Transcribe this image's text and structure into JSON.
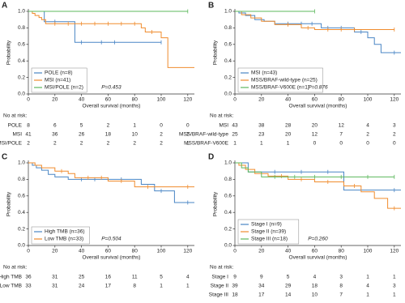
{
  "chart_data": [
    {
      "type": "km",
      "panel": "A",
      "xlabel": "Overall survival (months)",
      "ylabel": "Probability",
      "xlim": [
        0,
        125
      ],
      "xticks": [
        0,
        20,
        40,
        60,
        80,
        100,
        120
      ],
      "ylim": [
        0,
        1
      ],
      "yticks": [
        {
          "value": 0,
          "label": "0.0"
        },
        0.2,
        0.4,
        0.6,
        0.8,
        {
          "value": 1,
          "label": "1.0"
        }
      ],
      "annotation": "P=0.453",
      "series": [
        {
          "name": "POLE (n=8)",
          "color": "#4a86c5",
          "x": [
            0,
            12,
            35,
            100
          ],
          "values": [
            1,
            0.875,
            0.625,
            0.625
          ],
          "censored": {
            "x": [
              20,
              40,
              55,
              65,
              100
            ],
            "values": [
              0.875,
              0.625,
              0.625,
              0.625,
              0.625
            ]
          }
        },
        {
          "name": "MSI (n=41)",
          "color": "#f08c2e",
          "x": [
            0,
            3,
            5,
            8,
            10,
            13,
            85,
            88,
            100,
            105,
            125
          ],
          "values": [
            1,
            0.975,
            0.95,
            0.925,
            0.9,
            0.85,
            0.8,
            0.75,
            0.68,
            0.32,
            0.32
          ],
          "censored": {
            "x": [
              20,
              30,
              40,
              50,
              60,
              70,
              80,
              93
            ],
            "values": [
              0.85,
              0.85,
              0.85,
              0.85,
              0.85,
              0.85,
              0.85,
              0.75
            ]
          }
        },
        {
          "name": "MSI/POLE (n=2)",
          "color": "#5cb85c",
          "x": [
            0,
            120
          ],
          "values": [
            1,
            1
          ],
          "censored": {
            "x": [
              120
            ],
            "values": [
              1
            ]
          }
        }
      ],
      "risk_title": "No at risk:",
      "risk_table": [
        {
          "label": "POLE",
          "counts": [
            8,
            6,
            5,
            2,
            1,
            0,
            0
          ]
        },
        {
          "label": "MSI",
          "counts": [
            41,
            36,
            26,
            18,
            10,
            2,
            2
          ]
        },
        {
          "label": "MSI/POLE",
          "counts": [
            2,
            2,
            2,
            2,
            2,
            2,
            1
          ]
        }
      ]
    },
    {
      "type": "km",
      "panel": "B",
      "xlabel": "Overall survival (months)",
      "ylabel": "Probability",
      "xlim": [
        0,
        125
      ],
      "xticks": [
        0,
        20,
        40,
        60,
        80,
        100,
        120
      ],
      "ylim": [
        0,
        1
      ],
      "yticks": [
        {
          "value": 0,
          "label": "0.0"
        },
        0.2,
        0.4,
        0.6,
        0.8,
        {
          "value": 1,
          "label": "1.0"
        }
      ],
      "annotation": "P=0.876",
      "series": [
        {
          "name": "MSI (n=43)",
          "color": "#4a86c5",
          "x": [
            0,
            3,
            8,
            15,
            22,
            30,
            65,
            90,
            100,
            105,
            110,
            125
          ],
          "values": [
            1,
            0.98,
            0.95,
            0.9,
            0.88,
            0.85,
            0.8,
            0.75,
            0.68,
            0.6,
            0.5,
            0.5
          ],
          "censored": {
            "x": [
              40,
              50,
              58,
              70,
              80,
              95,
              120
            ],
            "values": [
              0.85,
              0.85,
              0.85,
              0.8,
              0.8,
              0.75,
              0.5
            ]
          }
        },
        {
          "name": "MSS/BRAF-wild-type (n=25)",
          "color": "#f08c2e",
          "x": [
            0,
            5,
            12,
            20,
            30,
            50,
            60,
            120
          ],
          "values": [
            1,
            0.96,
            0.92,
            0.88,
            0.84,
            0.8,
            0.78,
            0.78
          ],
          "censored": {
            "x": [
              40,
              55,
              70,
              80,
              90,
              120
            ],
            "values": [
              0.84,
              0.8,
              0.78,
              0.78,
              0.78,
              0.78
            ]
          }
        },
        {
          "name": "MSS/BRAF-V600E (n=1)",
          "color": "#5cb85c",
          "x": [
            0,
            60
          ],
          "values": [
            1,
            1
          ],
          "censored": {
            "x": [
              60
            ],
            "values": [
              1
            ]
          }
        }
      ],
      "risk_title": "No at risk:",
      "risk_table": [
        {
          "label": "MSI",
          "counts": [
            43,
            38,
            28,
            20,
            12,
            4,
            3
          ]
        },
        {
          "label": "MSS/BRAF-wild-type",
          "counts": [
            25,
            23,
            20,
            12,
            7,
            2,
            2
          ]
        },
        {
          "label": "MSS/BRAF-V600E",
          "counts": [
            1,
            1,
            1,
            0,
            0,
            0,
            0
          ]
        }
      ]
    },
    {
      "type": "km",
      "panel": "C",
      "xlabel": "Overall survival (months)",
      "ylabel": "Probability",
      "xlim": [
        0,
        125
      ],
      "xticks": [
        0,
        20,
        40,
        60,
        80,
        100,
        120
      ],
      "ylim": [
        0,
        1
      ],
      "yticks": [
        {
          "value": 0,
          "label": "0.0"
        },
        0.2,
        0.4,
        0.6,
        0.8,
        {
          "value": 1,
          "label": "1.0"
        }
      ],
      "annotation": "P=0.504",
      "series": [
        {
          "name": "High TMB (n=36)",
          "color": "#4a86c5",
          "x": [
            0,
            3,
            6,
            10,
            15,
            20,
            30,
            85,
            95,
            110,
            125
          ],
          "values": [
            1,
            0.97,
            0.94,
            0.91,
            0.86,
            0.83,
            0.8,
            0.74,
            0.66,
            0.52,
            0.52
          ],
          "censored": {
            "x": [
              40,
              50,
              60,
              70,
              100,
              120
            ],
            "values": [
              0.8,
              0.8,
              0.8,
              0.8,
              0.66,
              0.52
            ]
          }
        },
        {
          "name": "Low TMB (n=33)",
          "color": "#f08c2e",
          "x": [
            0,
            5,
            10,
            20,
            30,
            35,
            60,
            80,
            125
          ],
          "values": [
            1,
            0.97,
            0.94,
            0.9,
            0.87,
            0.82,
            0.78,
            0.71,
            0.71
          ],
          "censored": {
            "x": [
              25,
              45,
              55,
              70,
              90,
              120
            ],
            "values": [
              0.9,
              0.82,
              0.82,
              0.78,
              0.71,
              0.71
            ]
          }
        }
      ],
      "risk_title": "No at risk:",
      "risk_table": [
        {
          "label": "High TMB",
          "counts": [
            36,
            31,
            25,
            16,
            11,
            5,
            4
          ]
        },
        {
          "label": "Low TMB",
          "counts": [
            33,
            31,
            24,
            17,
            8,
            1,
            1
          ]
        }
      ]
    },
    {
      "type": "km",
      "panel": "D",
      "xlabel": "Overall survival (months)",
      "ylabel": "Probability",
      "xlim": [
        0,
        125
      ],
      "xticks": [
        0,
        20,
        40,
        60,
        80,
        100,
        120
      ],
      "ylim": [
        0,
        1
      ],
      "yticks": [
        {
          "value": 0,
          "label": "0.0"
        },
        0.2,
        0.4,
        0.6,
        0.8,
        {
          "value": 1,
          "label": "1.0"
        }
      ],
      "annotation": "P=0.260",
      "series": [
        {
          "name": "Stage I (n=9)",
          "color": "#4a86c5",
          "x": [
            0,
            10,
            82,
            125
          ],
          "values": [
            1,
            0.89,
            0.67,
            0.67
          ],
          "censored": {
            "x": [
              30,
              50,
              70,
              120
            ],
            "values": [
              0.89,
              0.89,
              0.89,
              0.67
            ]
          }
        },
        {
          "name": "Stage II (n=39)",
          "color": "#f08c2e",
          "x": [
            0,
            3,
            8,
            15,
            25,
            40,
            60,
            82,
            95,
            105,
            115,
            125
          ],
          "values": [
            1,
            0.97,
            0.92,
            0.87,
            0.84,
            0.8,
            0.77,
            0.72,
            0.65,
            0.57,
            0.45,
            0.45
          ],
          "censored": {
            "x": [
              35,
              50,
              70,
              90,
              120
            ],
            "values": [
              0.84,
              0.8,
              0.77,
              0.72,
              0.45
            ]
          }
        },
        {
          "name": "Stage III (n=18)",
          "color": "#5cb85c",
          "x": [
            0,
            5,
            10,
            20,
            120
          ],
          "values": [
            1,
            0.94,
            0.89,
            0.83,
            0.83
          ],
          "censored": {
            "x": [
              30,
              45,
              60,
              80,
              100,
              120
            ],
            "values": [
              0.83,
              0.83,
              0.83,
              0.83,
              0.83,
              0.83
            ]
          }
        }
      ],
      "risk_title": "No at risk:",
      "risk_table": [
        {
          "label": "Stage I",
          "counts": [
            9,
            9,
            5,
            4,
            3,
            1,
            1
          ]
        },
        {
          "label": "Stage II",
          "counts": [
            39,
            34,
            29,
            18,
            8,
            4,
            3
          ]
        },
        {
          "label": "Stage III",
          "counts": [
            18,
            17,
            14,
            10,
            7,
            1,
            1
          ]
        }
      ]
    }
  ]
}
